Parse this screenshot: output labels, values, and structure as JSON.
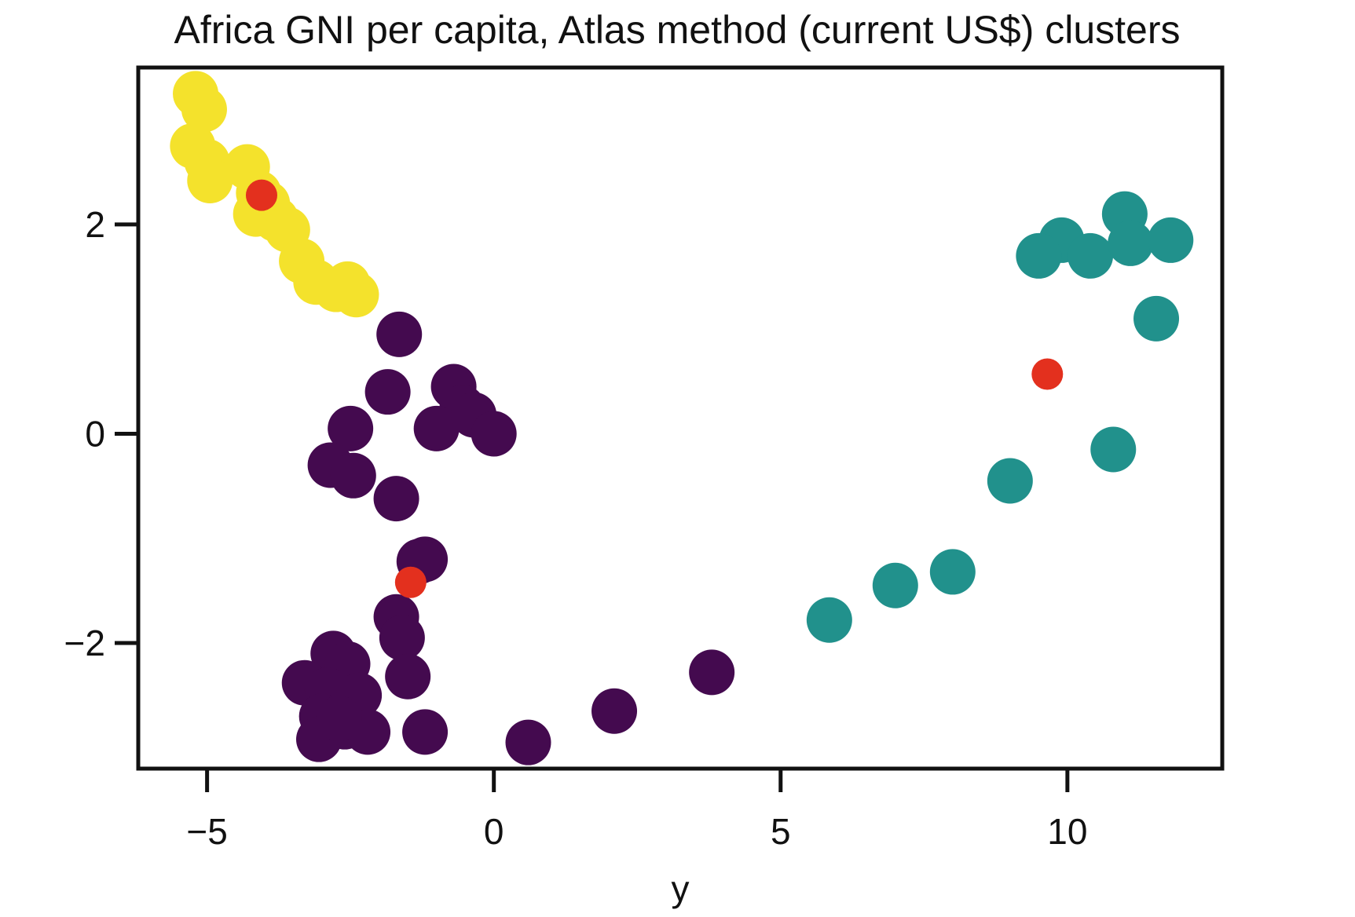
{
  "chart_data": {
    "type": "scatter",
    "title": "Africa GNI per capita, Atlas method (current US$) clusters",
    "xlabel": "y",
    "ylabel": "",
    "xlim": [
      -6.2,
      12.7
    ],
    "ylim": [
      -3.2,
      3.5
    ],
    "xticks": [
      -5,
      0,
      5,
      10
    ],
    "yticks": [
      -2,
      0,
      2
    ],
    "xtick_labels": [
      "−5",
      "0",
      "5",
      "10"
    ],
    "ytick_labels": [
      "−2",
      "0",
      "2"
    ],
    "grid": false,
    "colors": {
      "cluster_0": "#440a4f",
      "cluster_1": "#21918c",
      "cluster_2": "#f4e22c",
      "centroid": "#e3301e"
    },
    "series": [
      {
        "color": "#f4e22c",
        "points": [
          [
            -5.2,
            3.25
          ],
          [
            -5.05,
            3.1
          ],
          [
            -5.25,
            2.75
          ],
          [
            -5.0,
            2.6
          ],
          [
            -4.95,
            2.42
          ],
          [
            -4.3,
            2.55
          ],
          [
            -4.1,
            2.3
          ],
          [
            -3.95,
            2.2
          ],
          [
            -4.15,
            2.1
          ],
          [
            -3.8,
            2.05
          ],
          [
            -3.6,
            1.95
          ],
          [
            -3.35,
            1.65
          ],
          [
            -3.1,
            1.45
          ],
          [
            -2.75,
            1.38
          ],
          [
            -2.55,
            1.43
          ],
          [
            -2.4,
            1.33
          ]
        ]
      },
      {
        "color": "#440a4f",
        "points": [
          [
            -1.65,
            0.95
          ],
          [
            -1.85,
            0.4
          ],
          [
            -0.7,
            0.45
          ],
          [
            -0.55,
            0.25
          ],
          [
            -1.0,
            0.05
          ],
          [
            -0.35,
            0.18
          ],
          [
            0.0,
            -0.0
          ],
          [
            -2.5,
            0.05
          ],
          [
            -2.85,
            -0.3
          ],
          [
            -2.45,
            -0.4
          ],
          [
            -1.7,
            -0.62
          ],
          [
            -1.2,
            -1.2
          ],
          [
            -1.3,
            -1.22
          ],
          [
            -1.7,
            -1.75
          ],
          [
            -1.6,
            -1.95
          ],
          [
            -1.5,
            -2.32
          ],
          [
            -1.2,
            -2.85
          ],
          [
            -2.8,
            -2.1
          ],
          [
            -2.55,
            -2.2
          ],
          [
            -3.3,
            -2.38
          ],
          [
            -2.9,
            -2.45
          ],
          [
            -2.35,
            -2.5
          ],
          [
            -3.0,
            -2.7
          ],
          [
            -2.6,
            -2.8
          ],
          [
            -2.2,
            -2.85
          ],
          [
            -3.05,
            -2.92
          ],
          [
            -2.7,
            -2.72
          ],
          [
            0.6,
            -2.95
          ],
          [
            2.1,
            -2.65
          ],
          [
            3.8,
            -2.28
          ]
        ]
      },
      {
        "color": "#21918c",
        "points": [
          [
            11.0,
            2.1
          ],
          [
            9.9,
            1.85
          ],
          [
            10.4,
            1.7
          ],
          [
            9.5,
            1.7
          ],
          [
            11.1,
            1.82
          ],
          [
            11.8,
            1.85
          ],
          [
            11.55,
            1.1
          ],
          [
            10.8,
            -0.15
          ],
          [
            9.0,
            -0.45
          ],
          [
            8.0,
            -1.32
          ],
          [
            7.0,
            -1.45
          ],
          [
            5.85,
            -1.78
          ]
        ]
      }
    ],
    "centroids": [
      [
        -4.05,
        2.28
      ],
      [
        -1.45,
        -1.42
      ],
      [
        9.65,
        0.57
      ]
    ]
  }
}
